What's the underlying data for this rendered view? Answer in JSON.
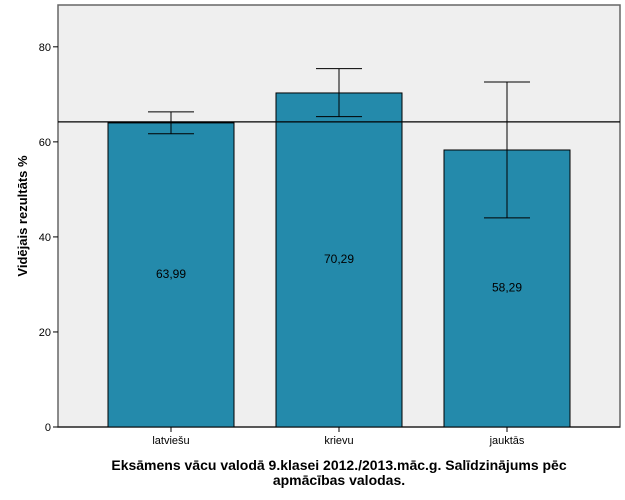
{
  "chart_data": {
    "type": "bar",
    "title_lines": [
      "Eksāmens vācu valodā 9.klasei 2012./2013.māc.g. Salīdzinājums pēc",
      "apmācības valodas."
    ],
    "xlabel": "",
    "ylabel": "Vidējais rezultāts %",
    "categories": [
      "latviešu",
      "krievu",
      "jauktās"
    ],
    "values": [
      63.99,
      70.29,
      58.29
    ],
    "value_labels": [
      "63,99",
      "70,29",
      "58,29"
    ],
    "error_bars": [
      {
        "low": 61.7,
        "high": 66.3
      },
      {
        "low": 65.3,
        "high": 75.4
      },
      {
        "low": 44.0,
        "high": 72.6
      }
    ],
    "reference_line": 64.2,
    "ylim": [
      0,
      88.8
    ],
    "yticks": [
      0,
      20,
      40,
      60,
      80
    ],
    "grid": false,
    "colors": {
      "bar": "#248aab",
      "plot_bg": "#efefef",
      "line": "#000000"
    }
  }
}
